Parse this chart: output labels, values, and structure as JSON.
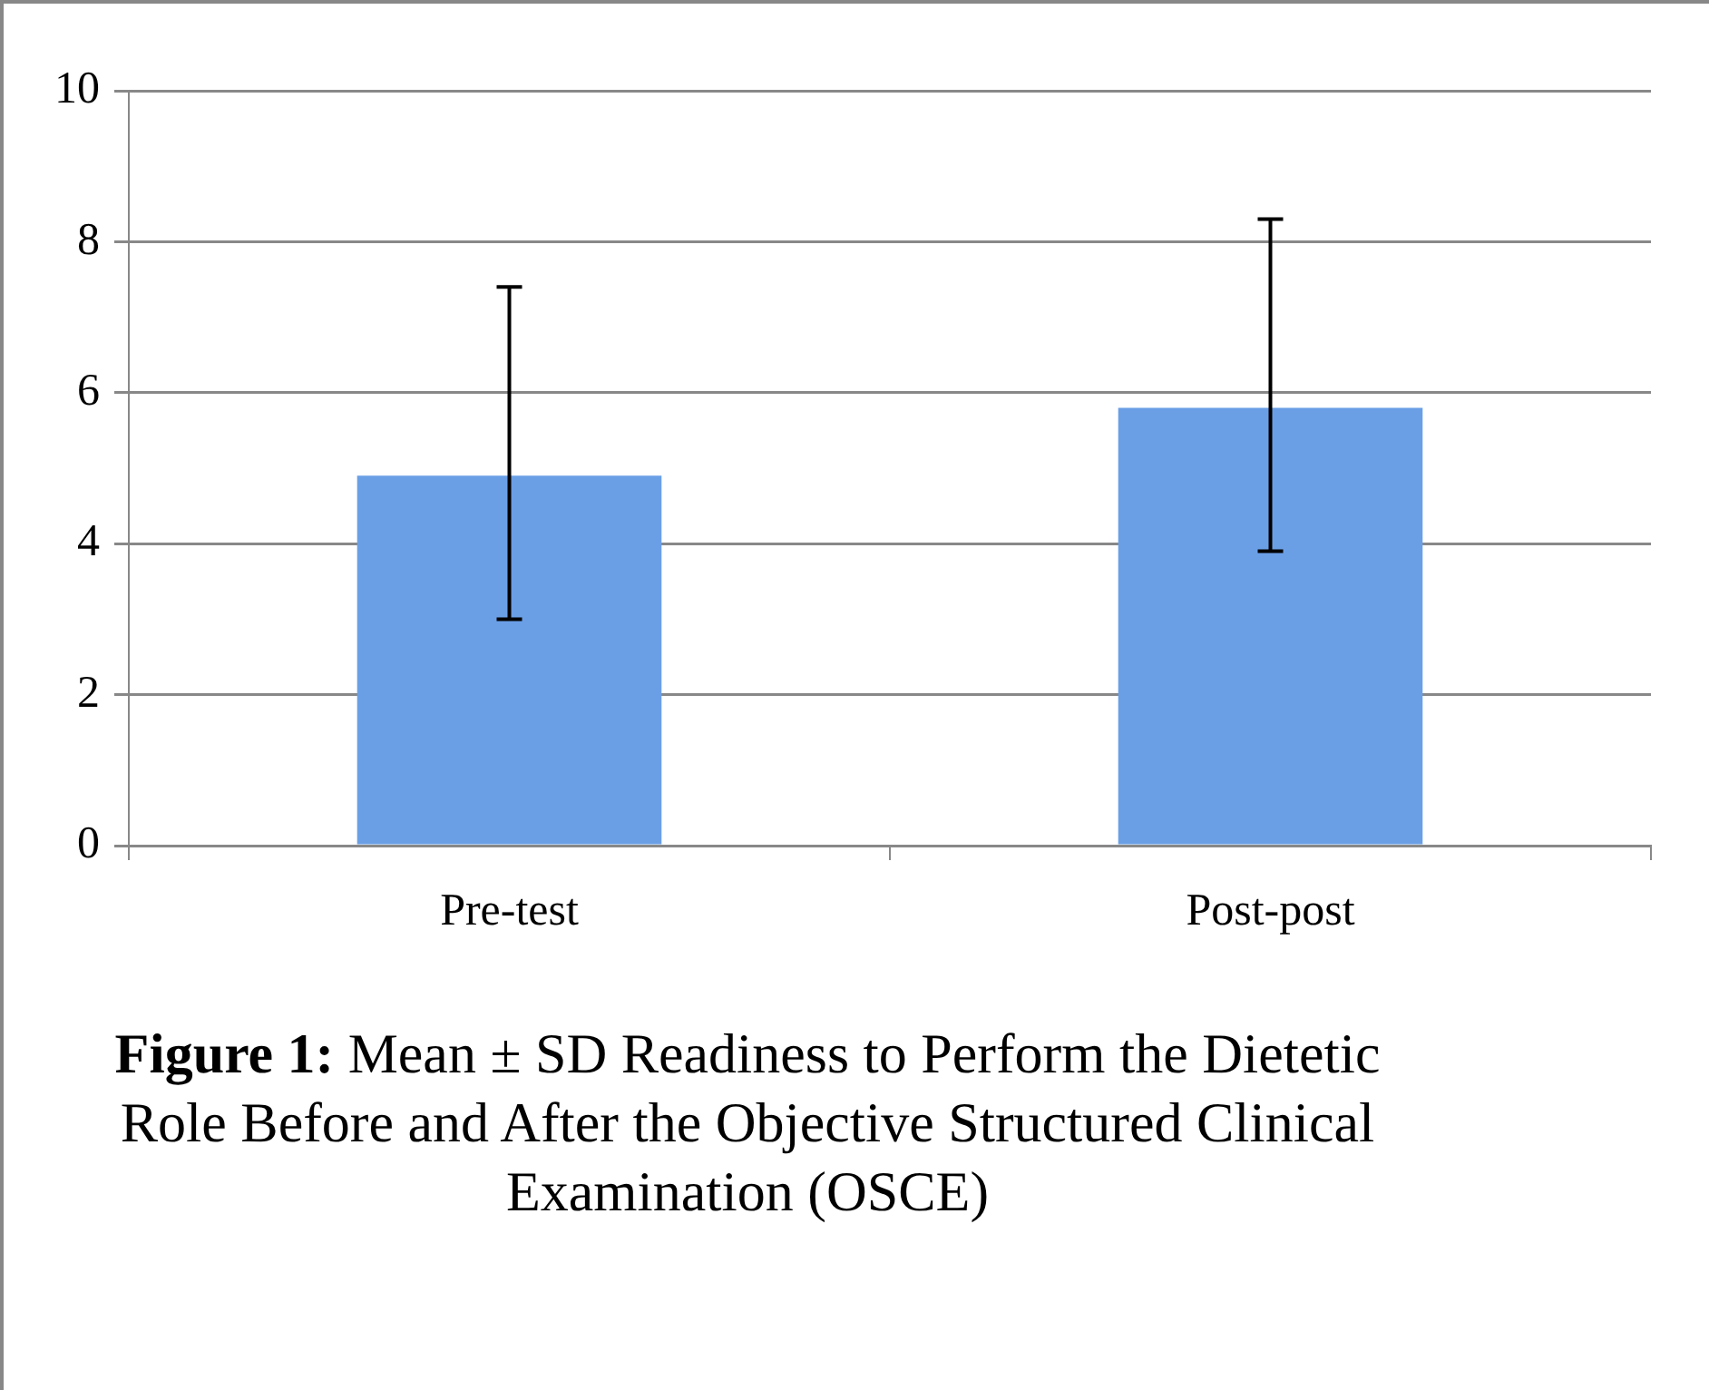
{
  "chart_data": {
    "type": "bar",
    "title": "Figure 1: Mean ± SD Readiness to Perform the Dietetic Role Before and After the Objective Structured Clinical Examination (OSCE)",
    "categories": [
      "Pre-test",
      "Post-post"
    ],
    "values": [
      4.9,
      5.8
    ],
    "errors": [
      [
        3.0,
        7.4
      ],
      [
        3.9,
        8.3
      ]
    ],
    "color": "#6a9fe6",
    "ylim": [
      0,
      10
    ],
    "yticks": [
      0,
      2,
      4,
      6,
      8,
      10
    ],
    "grid": "y",
    "legend": false
  }
}
